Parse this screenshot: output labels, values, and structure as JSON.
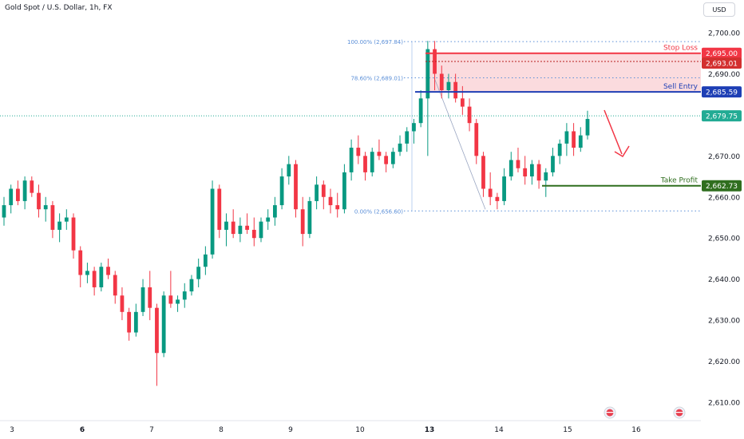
{
  "header": {
    "symbol": "Gold Spot / U.S. Dollar, 1h, FX"
  },
  "currency_button": "USD",
  "colors": {
    "up": "#089981",
    "down": "#f23645",
    "stop": "#f23645",
    "entry": "#1e3fb5",
    "take_profit": "#2f6e1e",
    "current": "#22ab94",
    "fib": "#5b8fd8",
    "zone": "#fbd7da"
  },
  "chart_data": {
    "type": "candlestick",
    "title": "Gold Spot / U.S. Dollar, 1h, FX",
    "ylim": [
      2605,
      2705
    ],
    "y_ticks": [
      "2,700.00",
      "2,690.00",
      "2,680.00",
      "2,670.00",
      "2,660.00",
      "2,650.00",
      "2,640.00",
      "2,630.00",
      "2,620.00",
      "2,610.00"
    ],
    "y_tick_values": [
      2700,
      2690,
      2680,
      2670,
      2660,
      2650,
      2640,
      2630,
      2620,
      2610
    ],
    "x_ticks": [
      {
        "label": "3",
        "bold": false
      },
      {
        "label": "6",
        "bold": true
      },
      {
        "label": "7",
        "bold": false
      },
      {
        "label": "8",
        "bold": false
      },
      {
        "label": "9",
        "bold": false
      },
      {
        "label": "10",
        "bold": false
      },
      {
        "label": "13",
        "bold": true
      },
      {
        "label": "14",
        "bold": false
      },
      {
        "label": "15",
        "bold": false
      },
      {
        "label": "16",
        "bold": false
      }
    ],
    "ohlc": [
      [
        2655,
        2660,
        2653,
        2658
      ],
      [
        2658,
        2663,
        2656,
        2662
      ],
      [
        2662,
        2664,
        2658,
        2659
      ],
      [
        2659,
        2665,
        2657,
        2664
      ],
      [
        2664,
        2665,
        2660,
        2661
      ],
      [
        2661,
        2663,
        2655,
        2657
      ],
      [
        2657,
        2660,
        2654,
        2658
      ],
      [
        2658,
        2659,
        2650,
        2652
      ],
      [
        2652,
        2656,
        2649,
        2654
      ],
      [
        2654,
        2657,
        2652,
        2655
      ],
      [
        2655,
        2656,
        2645,
        2647
      ],
      [
        2647,
        2648,
        2638,
        2641
      ],
      [
        2641,
        2644,
        2639,
        2642
      ],
      [
        2642,
        2643,
        2636,
        2638
      ],
      [
        2638,
        2644,
        2637,
        2643
      ],
      [
        2643,
        2645,
        2640,
        2641
      ],
      [
        2641,
        2642,
        2634,
        2636
      ],
      [
        2636,
        2638,
        2630,
        2632
      ],
      [
        2632,
        2633,
        2625,
        2627
      ],
      [
        2627,
        2634,
        2626,
        2632
      ],
      [
        2632,
        2640,
        2631,
        2638
      ],
      [
        2638,
        2642,
        2630,
        2633
      ],
      [
        2633,
        2634,
        2614,
        2622
      ],
      [
        2622,
        2637,
        2621,
        2636
      ],
      [
        2636,
        2642,
        2633,
        2634
      ],
      [
        2634,
        2636,
        2632,
        2635
      ],
      [
        2635,
        2639,
        2633,
        2637
      ],
      [
        2637,
        2641,
        2636,
        2640
      ],
      [
        2640,
        2645,
        2638,
        2643
      ],
      [
        2643,
        2648,
        2641,
        2646
      ],
      [
        2646,
        2664,
        2645,
        2662
      ],
      [
        2662,
        2663,
        2650,
        2652
      ],
      [
        2652,
        2656,
        2648,
        2654
      ],
      [
        2654,
        2657,
        2650,
        2651
      ],
      [
        2651,
        2655,
        2649,
        2653
      ],
      [
        2653,
        2656,
        2651,
        2652
      ],
      [
        2652,
        2655,
        2648,
        2650
      ],
      [
        2650,
        2655,
        2649,
        2654
      ],
      [
        2654,
        2657,
        2652,
        2655
      ],
      [
        2655,
        2660,
        2653,
        2658
      ],
      [
        2658,
        2667,
        2657,
        2665
      ],
      [
        2665,
        2670,
        2663,
        2668
      ],
      [
        2668,
        2669,
        2655,
        2657
      ],
      [
        2657,
        2660,
        2648,
        2651
      ],
      [
        2651,
        2660,
        2650,
        2659
      ],
      [
        2659,
        2665,
        2657,
        2663
      ],
      [
        2663,
        2664,
        2657,
        2660
      ],
      [
        2660,
        2662,
        2656,
        2658
      ],
      [
        2658,
        2661,
        2655,
        2657
      ],
      [
        2657,
        2668,
        2656,
        2666
      ],
      [
        2666,
        2674,
        2664,
        2672
      ],
      [
        2672,
        2675,
        2668,
        2670
      ],
      [
        2670,
        2671,
        2664,
        2666
      ],
      [
        2666,
        2672,
        2665,
        2671
      ],
      [
        2671,
        2674,
        2669,
        2670
      ],
      [
        2670,
        2671,
        2666,
        2668
      ],
      [
        2668,
        2672,
        2667,
        2671
      ],
      [
        2671,
        2675,
        2670,
        2673
      ],
      [
        2673,
        2677,
        2671,
        2676
      ],
      [
        2676,
        2679,
        2673,
        2678
      ],
      [
        2678,
        2686,
        2677,
        2684
      ],
      [
        2684,
        2698,
        2670,
        2696
      ],
      [
        2696,
        2698,
        2686,
        2690
      ],
      [
        2690,
        2692,
        2684,
        2686
      ],
      [
        2686,
        2690,
        2684,
        2688
      ],
      [
        2688,
        2690,
        2683,
        2684
      ],
      [
        2684,
        2687,
        2680,
        2682
      ],
      [
        2682,
        2684,
        2676,
        2678
      ],
      [
        2678,
        2679,
        2668,
        2670
      ],
      [
        2670,
        2671,
        2660,
        2662
      ],
      [
        2662,
        2666,
        2658,
        2660
      ],
      [
        2660,
        2661,
        2657,
        2659
      ],
      [
        2659,
        2667,
        2658,
        2665
      ],
      [
        2665,
        2671,
        2664,
        2669
      ],
      [
        2669,
        2672,
        2666,
        2667
      ],
      [
        2667,
        2670,
        2663,
        2665
      ],
      [
        2665,
        2669,
        2663,
        2668
      ],
      [
        2668,
        2669,
        2662,
        2664
      ],
      [
        2664,
        2667,
        2660,
        2666
      ],
      [
        2666,
        2672,
        2665,
        2670
      ],
      [
        2670,
        2674,
        2668,
        2673
      ],
      [
        2673,
        2678,
        2670,
        2676
      ],
      [
        2676,
        2678,
        2670,
        2672
      ],
      [
        2672,
        2677,
        2671,
        2675
      ],
      [
        2675,
        2681,
        2674,
        2679
      ]
    ],
    "levels": [
      {
        "name": "Stop Loss",
        "value": 2695.0,
        "label": "2,695.00"
      },
      {
        "name": "",
        "value": 2693.01,
        "label": "2,693.01"
      },
      {
        "name": "Sell Entry",
        "value": 2685.59,
        "label": "2,685.59"
      },
      {
        "name": "",
        "value": 2679.75,
        "label": "2,679.75"
      },
      {
        "name": "Take Profit",
        "value": 2662.73,
        "label": "2,662.73"
      }
    ],
    "fib": [
      {
        "label": "100.00% (2,697.84)",
        "value": 2697.84
      },
      {
        "label": "78.60% (2,689.01)",
        "value": 2689.01
      },
      {
        "label": "0.00% (2,656.60)",
        "value": 2656.6
      }
    ]
  }
}
